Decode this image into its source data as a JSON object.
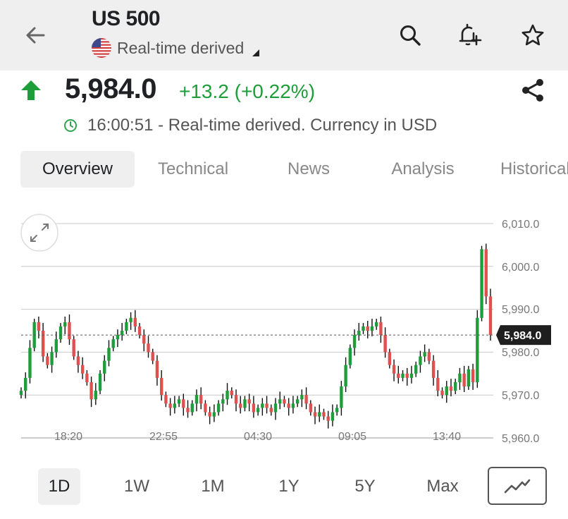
{
  "header": {
    "title": "US 500",
    "subtitle": "Real-time derived",
    "icons": [
      "back-arrow-icon",
      "search-icon",
      "add-alert-icon",
      "star-icon",
      "us-flag-icon"
    ]
  },
  "quote": {
    "price": "5,984.0",
    "change": "+13.2 (+0.22%)",
    "direction": "up",
    "time_text": "16:00:51 - Real-time derived. Currency in USD",
    "up_color": "#1e9e3a"
  },
  "tabs": [
    {
      "label": "Overview",
      "active": true
    },
    {
      "label": "Technical",
      "active": false
    },
    {
      "label": "News",
      "active": false
    },
    {
      "label": "Analysis",
      "active": false
    },
    {
      "label": "Historical",
      "active": false
    }
  ],
  "chart_data": {
    "type": "candlestick",
    "x_tick_labels": [
      "18:20",
      "22:55",
      "04:30",
      "09:05",
      "13:40"
    ],
    "y_tick_labels": [
      "6,010.0",
      "6,000.0",
      "5,990.0",
      "5,980.0",
      "5,970.0",
      "5,960.0"
    ],
    "ylim": [
      5960,
      6010
    ],
    "current_value": 5984.0,
    "current_label": "5,984.0",
    "grid": true,
    "up_color": "#1e9e3a",
    "down_color": "#e05050",
    "close_series": [
      5971,
      5974,
      5981,
      5987,
      5985,
      5979,
      5977,
      5980,
      5983,
      5986,
      5987,
      5983,
      5979,
      5977,
      5975,
      5973,
      5969,
      5971,
      5975,
      5978,
      5981,
      5983,
      5984,
      5985,
      5987,
      5988,
      5986,
      5984,
      5982,
      5980,
      5978,
      5974,
      5970,
      5968,
      5967,
      5968,
      5969,
      5967,
      5966,
      5968,
      5970,
      5968,
      5966,
      5965,
      5966,
      5968,
      5969,
      5971,
      5970,
      5968,
      5967,
      5969,
      5968,
      5966,
      5967,
      5968,
      5967,
      5966,
      5968,
      5969,
      5968,
      5967,
      5968,
      5969,
      5970,
      5968,
      5966,
      5965,
      5966,
      5965,
      5964,
      5966,
      5967,
      5972,
      5977,
      5981,
      5984,
      5985,
      5986,
      5985,
      5986,
      5987,
      5984,
      5980,
      5977,
      5975,
      5974,
      5975,
      5974,
      5975,
      5977,
      5979,
      5980,
      5978,
      5974,
      5971,
      5970,
      5972,
      5971,
      5973,
      5975,
      5972,
      5976,
      5973,
      5988,
      6004,
      5993,
      5984
    ]
  },
  "periods": [
    {
      "label": "1D",
      "active": true
    },
    {
      "label": "1W",
      "active": false
    },
    {
      "label": "1M",
      "active": false
    },
    {
      "label": "1Y",
      "active": false
    },
    {
      "label": "5Y",
      "active": false
    },
    {
      "label": "Max",
      "active": false
    }
  ],
  "chart_type_icon": "line-chart-icon",
  "expand_icon": "expand-icon"
}
